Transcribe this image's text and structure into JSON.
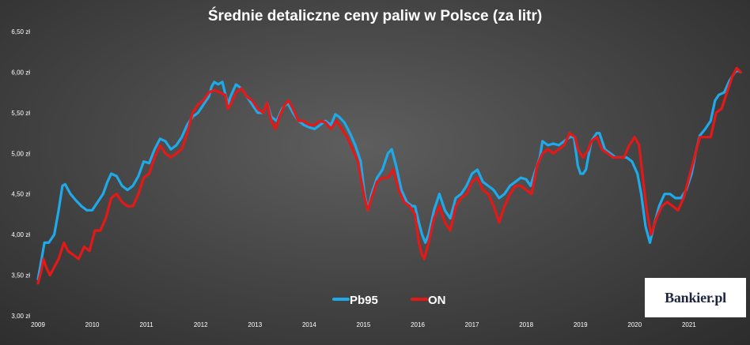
{
  "chart_data": {
    "type": "line",
    "title": "Średnie detaliczne ceny paliw w Polsce (za litr)",
    "xlabel": "",
    "ylabel": "",
    "x_range": [
      2009.0,
      2021.95
    ],
    "ylim": [
      3.0,
      6.5
    ],
    "y_ticks": [
      {
        "value": 3.0,
        "label": "3,00 zł"
      },
      {
        "value": 3.5,
        "label": "3,50 zł"
      },
      {
        "value": 4.0,
        "label": "4,00 zł"
      },
      {
        "value": 4.5,
        "label": "4,50 zł"
      },
      {
        "value": 5.0,
        "label": "5,00 zł"
      },
      {
        "value": 5.5,
        "label": "5,50 zł"
      },
      {
        "value": 6.0,
        "label": "6,00 zł"
      },
      {
        "value": 6.5,
        "label": "6,50 zł"
      }
    ],
    "x_ticks": [
      {
        "value": 2009,
        "label": "2009"
      },
      {
        "value": 2010,
        "label": "2010"
      },
      {
        "value": 2011,
        "label": "2011"
      },
      {
        "value": 2012,
        "label": "2012"
      },
      {
        "value": 2013,
        "label": "2013"
      },
      {
        "value": 2014,
        "label": "2014"
      },
      {
        "value": 2015,
        "label": "2015"
      },
      {
        "value": 2016,
        "label": "2016"
      },
      {
        "value": 2017,
        "label": "2017"
      },
      {
        "value": 2018,
        "label": "2018"
      },
      {
        "value": 2019,
        "label": "2019"
      },
      {
        "value": 2020,
        "label": "2020"
      },
      {
        "value": 2021,
        "label": "2021"
      }
    ],
    "grid": false,
    "legend_position": "bottom-center",
    "series": [
      {
        "name": "Pb95",
        "color": "#1fa9e8",
        "points": [
          [
            2009.0,
            3.45
          ],
          [
            2009.08,
            3.75
          ],
          [
            2009.12,
            3.9
          ],
          [
            2009.2,
            3.9
          ],
          [
            2009.3,
            4.0
          ],
          [
            2009.38,
            4.3
          ],
          [
            2009.45,
            4.6
          ],
          [
            2009.5,
            4.62
          ],
          [
            2009.6,
            4.5
          ],
          [
            2009.7,
            4.42
          ],
          [
            2009.8,
            4.35
          ],
          [
            2009.9,
            4.3
          ],
          [
            2010.0,
            4.3
          ],
          [
            2010.1,
            4.4
          ],
          [
            2010.2,
            4.5
          ],
          [
            2010.28,
            4.65
          ],
          [
            2010.35,
            4.75
          ],
          [
            2010.45,
            4.72
          ],
          [
            2010.55,
            4.6
          ],
          [
            2010.65,
            4.55
          ],
          [
            2010.75,
            4.6
          ],
          [
            2010.85,
            4.72
          ],
          [
            2010.95,
            4.9
          ],
          [
            2011.05,
            4.88
          ],
          [
            2011.15,
            5.05
          ],
          [
            2011.25,
            5.18
          ],
          [
            2011.35,
            5.15
          ],
          [
            2011.45,
            5.05
          ],
          [
            2011.55,
            5.1
          ],
          [
            2011.65,
            5.2
          ],
          [
            2011.75,
            5.35
          ],
          [
            2011.85,
            5.45
          ],
          [
            2011.95,
            5.5
          ],
          [
            2012.05,
            5.6
          ],
          [
            2012.15,
            5.7
          ],
          [
            2012.2,
            5.82
          ],
          [
            2012.25,
            5.88
          ],
          [
            2012.32,
            5.85
          ],
          [
            2012.4,
            5.88
          ],
          [
            2012.5,
            5.6
          ],
          [
            2012.55,
            5.7
          ],
          [
            2012.65,
            5.85
          ],
          [
            2012.75,
            5.8
          ],
          [
            2012.85,
            5.7
          ],
          [
            2012.95,
            5.6
          ],
          [
            2013.05,
            5.5
          ],
          [
            2013.15,
            5.5
          ],
          [
            2013.22,
            5.62
          ],
          [
            2013.3,
            5.45
          ],
          [
            2013.4,
            5.4
          ],
          [
            2013.5,
            5.55
          ],
          [
            2013.6,
            5.62
          ],
          [
            2013.7,
            5.5
          ],
          [
            2013.8,
            5.4
          ],
          [
            2013.9,
            5.35
          ],
          [
            2014.0,
            5.32
          ],
          [
            2014.1,
            5.3
          ],
          [
            2014.2,
            5.35
          ],
          [
            2014.3,
            5.4
          ],
          [
            2014.4,
            5.35
          ],
          [
            2014.48,
            5.48
          ],
          [
            2014.55,
            5.45
          ],
          [
            2014.65,
            5.38
          ],
          [
            2014.75,
            5.25
          ],
          [
            2014.85,
            5.1
          ],
          [
            2014.95,
            4.9
          ],
          [
            2015.02,
            4.5
          ],
          [
            2015.08,
            4.3
          ],
          [
            2015.15,
            4.5
          ],
          [
            2015.25,
            4.7
          ],
          [
            2015.35,
            4.8
          ],
          [
            2015.45,
            5.0
          ],
          [
            2015.52,
            5.05
          ],
          [
            2015.6,
            4.85
          ],
          [
            2015.7,
            4.55
          ],
          [
            2015.8,
            4.4
          ],
          [
            2015.9,
            4.35
          ],
          [
            2015.95,
            4.35
          ],
          [
            2016.02,
            4.15
          ],
          [
            2016.08,
            4.0
          ],
          [
            2016.14,
            3.9
          ],
          [
            2016.2,
            4.0
          ],
          [
            2016.3,
            4.3
          ],
          [
            2016.4,
            4.5
          ],
          [
            2016.5,
            4.3
          ],
          [
            2016.6,
            4.2
          ],
          [
            2016.7,
            4.45
          ],
          [
            2016.8,
            4.5
          ],
          [
            2016.9,
            4.6
          ],
          [
            2017.0,
            4.75
          ],
          [
            2017.1,
            4.8
          ],
          [
            2017.2,
            4.65
          ],
          [
            2017.3,
            4.6
          ],
          [
            2017.4,
            4.55
          ],
          [
            2017.5,
            4.45
          ],
          [
            2017.6,
            4.5
          ],
          [
            2017.7,
            4.6
          ],
          [
            2017.8,
            4.65
          ],
          [
            2017.9,
            4.7
          ],
          [
            2018.0,
            4.68
          ],
          [
            2018.08,
            4.6
          ],
          [
            2018.15,
            4.75
          ],
          [
            2018.25,
            4.95
          ],
          [
            2018.3,
            5.15
          ],
          [
            2018.4,
            5.1
          ],
          [
            2018.5,
            5.12
          ],
          [
            2018.6,
            5.1
          ],
          [
            2018.7,
            5.15
          ],
          [
            2018.8,
            5.2
          ],
          [
            2018.88,
            5.2
          ],
          [
            2018.95,
            4.85
          ],
          [
            2019.0,
            4.75
          ],
          [
            2019.05,
            4.75
          ],
          [
            2019.1,
            4.8
          ],
          [
            2019.2,
            5.15
          ],
          [
            2019.3,
            5.25
          ],
          [
            2019.35,
            5.25
          ],
          [
            2019.45,
            5.05
          ],
          [
            2019.55,
            5.0
          ],
          [
            2019.65,
            4.95
          ],
          [
            2019.75,
            4.95
          ],
          [
            2019.85,
            4.95
          ],
          [
            2019.95,
            4.9
          ],
          [
            2020.05,
            4.75
          ],
          [
            2020.12,
            4.5
          ],
          [
            2020.2,
            4.1
          ],
          [
            2020.28,
            3.9
          ],
          [
            2020.35,
            4.1
          ],
          [
            2020.45,
            4.35
          ],
          [
            2020.55,
            4.5
          ],
          [
            2020.65,
            4.5
          ],
          [
            2020.75,
            4.45
          ],
          [
            2020.85,
            4.45
          ],
          [
            2020.95,
            4.55
          ],
          [
            2021.05,
            4.75
          ],
          [
            2021.12,
            5.0
          ],
          [
            2021.2,
            5.22
          ],
          [
            2021.3,
            5.3
          ],
          [
            2021.4,
            5.4
          ],
          [
            2021.48,
            5.65
          ],
          [
            2021.55,
            5.72
          ],
          [
            2021.65,
            5.75
          ],
          [
            2021.75,
            5.9
          ],
          [
            2021.85,
            6.0
          ],
          [
            2021.9,
            6.02
          ],
          [
            2021.95,
            6.0
          ]
        ]
      },
      {
        "name": "ON",
        "color": "#e51818",
        "points": [
          [
            2009.0,
            3.4
          ],
          [
            2009.06,
            3.55
          ],
          [
            2009.1,
            3.7
          ],
          [
            2009.15,
            3.6
          ],
          [
            2009.22,
            3.5
          ],
          [
            2009.3,
            3.6
          ],
          [
            2009.38,
            3.7
          ],
          [
            2009.48,
            3.9
          ],
          [
            2009.55,
            3.8
          ],
          [
            2009.65,
            3.75
          ],
          [
            2009.75,
            3.7
          ],
          [
            2009.85,
            3.85
          ],
          [
            2009.95,
            3.8
          ],
          [
            2010.05,
            4.05
          ],
          [
            2010.15,
            4.05
          ],
          [
            2010.25,
            4.2
          ],
          [
            2010.35,
            4.45
          ],
          [
            2010.45,
            4.5
          ],
          [
            2010.55,
            4.4
          ],
          [
            2010.65,
            4.35
          ],
          [
            2010.75,
            4.35
          ],
          [
            2010.85,
            4.5
          ],
          [
            2010.95,
            4.7
          ],
          [
            2011.05,
            4.75
          ],
          [
            2011.15,
            4.95
          ],
          [
            2011.25,
            5.1
          ],
          [
            2011.35,
            5.0
          ],
          [
            2011.45,
            4.95
          ],
          [
            2011.55,
            5.0
          ],
          [
            2011.65,
            5.05
          ],
          [
            2011.75,
            5.25
          ],
          [
            2011.85,
            5.5
          ],
          [
            2011.95,
            5.6
          ],
          [
            2012.05,
            5.65
          ],
          [
            2012.15,
            5.75
          ],
          [
            2012.25,
            5.78
          ],
          [
            2012.35,
            5.75
          ],
          [
            2012.45,
            5.72
          ],
          [
            2012.5,
            5.55
          ],
          [
            2012.55,
            5.6
          ],
          [
            2012.65,
            5.75
          ],
          [
            2012.75,
            5.8
          ],
          [
            2012.85,
            5.7
          ],
          [
            2012.95,
            5.65
          ],
          [
            2013.05,
            5.55
          ],
          [
            2013.15,
            5.5
          ],
          [
            2013.22,
            5.62
          ],
          [
            2013.3,
            5.4
          ],
          [
            2013.38,
            5.3
          ],
          [
            2013.45,
            5.45
          ],
          [
            2013.55,
            5.6
          ],
          [
            2013.62,
            5.65
          ],
          [
            2013.7,
            5.55
          ],
          [
            2013.8,
            5.4
          ],
          [
            2013.9,
            5.4
          ],
          [
            2014.0,
            5.35
          ],
          [
            2014.1,
            5.35
          ],
          [
            2014.2,
            5.4
          ],
          [
            2014.3,
            5.38
          ],
          [
            2014.4,
            5.3
          ],
          [
            2014.5,
            5.4
          ],
          [
            2014.6,
            5.3
          ],
          [
            2014.7,
            5.2
          ],
          [
            2014.8,
            5.05
          ],
          [
            2014.9,
            4.9
          ],
          [
            2014.95,
            4.7
          ],
          [
            2015.02,
            4.45
          ],
          [
            2015.08,
            4.3
          ],
          [
            2015.15,
            4.45
          ],
          [
            2015.25,
            4.65
          ],
          [
            2015.35,
            4.7
          ],
          [
            2015.45,
            4.7
          ],
          [
            2015.55,
            4.8
          ],
          [
            2015.65,
            4.55
          ],
          [
            2015.75,
            4.4
          ],
          [
            2015.85,
            4.35
          ],
          [
            2015.9,
            4.3
          ],
          [
            2015.95,
            4.25
          ],
          [
            2016.02,
            3.9
          ],
          [
            2016.08,
            3.75
          ],
          [
            2016.12,
            3.7
          ],
          [
            2016.2,
            3.9
          ],
          [
            2016.3,
            4.2
          ],
          [
            2016.4,
            4.35
          ],
          [
            2016.5,
            4.15
          ],
          [
            2016.6,
            4.05
          ],
          [
            2016.7,
            4.35
          ],
          [
            2016.8,
            4.45
          ],
          [
            2016.9,
            4.5
          ],
          [
            2017.0,
            4.65
          ],
          [
            2017.1,
            4.7
          ],
          [
            2017.2,
            4.55
          ],
          [
            2017.3,
            4.5
          ],
          [
            2017.4,
            4.35
          ],
          [
            2017.5,
            4.15
          ],
          [
            2017.6,
            4.35
          ],
          [
            2017.7,
            4.5
          ],
          [
            2017.8,
            4.6
          ],
          [
            2017.9,
            4.6
          ],
          [
            2018.0,
            4.55
          ],
          [
            2018.1,
            4.5
          ],
          [
            2018.2,
            4.85
          ],
          [
            2018.3,
            5.0
          ],
          [
            2018.4,
            5.05
          ],
          [
            2018.5,
            5.0
          ],
          [
            2018.6,
            5.05
          ],
          [
            2018.7,
            5.1
          ],
          [
            2018.8,
            5.25
          ],
          [
            2018.9,
            5.2
          ],
          [
            2018.95,
            5.05
          ],
          [
            2019.05,
            4.95
          ],
          [
            2019.15,
            5.05
          ],
          [
            2019.2,
            5.15
          ],
          [
            2019.3,
            5.2
          ],
          [
            2019.4,
            5.05
          ],
          [
            2019.5,
            5.0
          ],
          [
            2019.6,
            4.95
          ],
          [
            2019.7,
            4.95
          ],
          [
            2019.8,
            4.95
          ],
          [
            2019.9,
            5.1
          ],
          [
            2020.0,
            5.2
          ],
          [
            2020.08,
            5.1
          ],
          [
            2020.15,
            4.7
          ],
          [
            2020.22,
            4.3
          ],
          [
            2020.3,
            4.0
          ],
          [
            2020.4,
            4.2
          ],
          [
            2020.5,
            4.35
          ],
          [
            2020.6,
            4.4
          ],
          [
            2020.7,
            4.35
          ],
          [
            2020.8,
            4.3
          ],
          [
            2020.9,
            4.45
          ],
          [
            2021.0,
            4.7
          ],
          [
            2021.1,
            4.95
          ],
          [
            2021.2,
            5.2
          ],
          [
            2021.3,
            5.2
          ],
          [
            2021.4,
            5.2
          ],
          [
            2021.5,
            5.5
          ],
          [
            2021.6,
            5.55
          ],
          [
            2021.7,
            5.75
          ],
          [
            2021.8,
            5.95
          ],
          [
            2021.88,
            6.05
          ],
          [
            2021.95,
            6.0
          ]
        ]
      }
    ]
  },
  "brand": {
    "logo_text": "Bankier.pl"
  }
}
